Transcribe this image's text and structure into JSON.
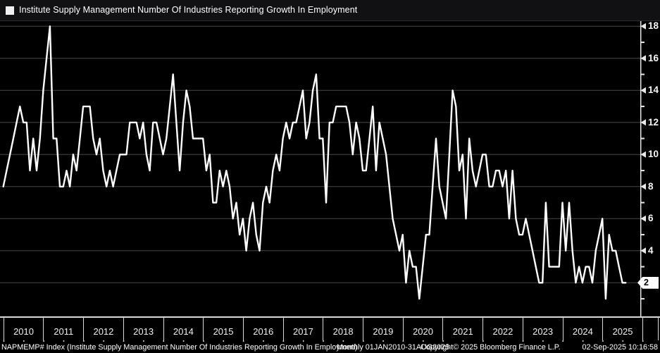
{
  "title_bar": {
    "title": "Institute Supply Management Number Of Industries Reporting Growth In Employment",
    "legend_marker": "white-square"
  },
  "y_axis": {
    "major_ticks": [
      18,
      16,
      14,
      12,
      10,
      8,
      6,
      4,
      2
    ],
    "minor_ticks": [
      17,
      15,
      13,
      11,
      9,
      7,
      5,
      3,
      1
    ],
    "last_value_badge": "2"
  },
  "x_axis": {
    "years": [
      "2010",
      "2011",
      "2012",
      "2013",
      "2014",
      "2015",
      "2016",
      "2017",
      "2018",
      "2019",
      "2020",
      "2021",
      "2022",
      "2023",
      "2024",
      "2025"
    ]
  },
  "footer": {
    "security": "NAPMEMP# Index (Institute Supply Management Number Of Industries Reporting Growth In Employmen)",
    "period": "Monthly 01JAN2010-31AUG2025",
    "copyright": "Copyright© 2025 Bloomberg Finance L.P.",
    "timestamp": "02-Sep-2025 10:16:58"
  },
  "colors": {
    "background": "#000000",
    "titlebar_bg": "#111114",
    "line": "#ffffff",
    "grid": "#474747",
    "axis": "#e8e8e8",
    "band_border": "#d8d8d8",
    "badge_bg": "#ffffff",
    "badge_text": "#000000",
    "text": "#f2f2f2"
  },
  "chart_data": {
    "type": "line",
    "title": "Institute Supply Management Number Of Industries Reporting Growth In Employment",
    "ticker": "NAPMEMP# Index",
    "frequency": "Monthly",
    "date_range": "01JAN2010-31AUG2025",
    "ylim": [
      0,
      18.5
    ],
    "y_ticks": [
      2,
      4,
      6,
      8,
      10,
      12,
      14,
      16,
      18
    ],
    "grid": "horizontal-only",
    "legend_position": "top-left",
    "y_axis_side": "right",
    "last_value": 2,
    "series": [
      {
        "name": "NAPMEMP# Index",
        "color": "#ffffff",
        "monthly_values_by_year": [
          {
            "year": 2010,
            "values": [
              8,
              9,
              10,
              11,
              12,
              13,
              12,
              12,
              9,
              11,
              9,
              11
            ]
          },
          {
            "year": 2011,
            "values": [
              14,
              16,
              18,
              11,
              11,
              8,
              8,
              9,
              8,
              10,
              9,
              11
            ]
          },
          {
            "year": 2012,
            "values": [
              13,
              13,
              13,
              11,
              10,
              11,
              9,
              8,
              9,
              8,
              9,
              10
            ]
          },
          {
            "year": 2013,
            "values": [
              10,
              10,
              12,
              12,
              12,
              11,
              12,
              10,
              9,
              12,
              12,
              11
            ]
          },
          {
            "year": 2014,
            "values": [
              10,
              11,
              13,
              15,
              12,
              9,
              12,
              14,
              13,
              11,
              11,
              11
            ]
          },
          {
            "year": 2015,
            "values": [
              11,
              9,
              10,
              7,
              7,
              9,
              8,
              9,
              8,
              6,
              7,
              5
            ]
          },
          {
            "year": 2016,
            "values": [
              6,
              4,
              6,
              7,
              5,
              4,
              7,
              8,
              7,
              9,
              10,
              9
            ]
          },
          {
            "year": 2017,
            "values": [
              11,
              12,
              11,
              12,
              12,
              13,
              14,
              11,
              12,
              14,
              15,
              11
            ]
          },
          {
            "year": 2018,
            "values": [
              11,
              7,
              12,
              12,
              13,
              13,
              13,
              13,
              12,
              10,
              12,
              11
            ]
          },
          {
            "year": 2019,
            "values": [
              9,
              9,
              11,
              13,
              9,
              12,
              11,
              10,
              8,
              6,
              5,
              4
            ]
          },
          {
            "year": 2020,
            "values": [
              5,
              2,
              4,
              3,
              3,
              1,
              3,
              5,
              5,
              8,
              11,
              8
            ]
          },
          {
            "year": 2021,
            "values": [
              7,
              6,
              10,
              14,
              13,
              9,
              10,
              6,
              11,
              9,
              8,
              9
            ]
          },
          {
            "year": 2022,
            "values": [
              10,
              10,
              8,
              8,
              9,
              9,
              8,
              9,
              6,
              9,
              6,
              5
            ]
          },
          {
            "year": 2023,
            "values": [
              5,
              6,
              5,
              4,
              3,
              2,
              2,
              7,
              3,
              3,
              3,
              3
            ]
          },
          {
            "year": 2024,
            "values": [
              7,
              4,
              7,
              4,
              2,
              3,
              2,
              3,
              3,
              2,
              4,
              5
            ]
          },
          {
            "year": 2025,
            "values": [
              6,
              1,
              5,
              4,
              4,
              3,
              2,
              2
            ]
          }
        ]
      }
    ]
  }
}
